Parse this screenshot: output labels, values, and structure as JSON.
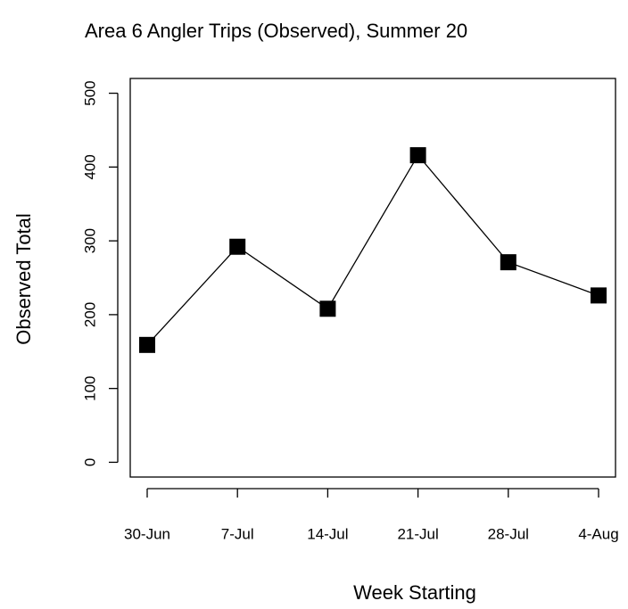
{
  "chart_data": {
    "type": "line",
    "title": "Area 6 Angler Trips (Observed), Summer 20",
    "x_label": "Week Starting",
    "y_label": "Observed Total",
    "categories": [
      "30-Jun",
      "7-Jul",
      "14-Jul",
      "21-Jul",
      "28-Jul",
      "4-Aug"
    ],
    "series": [
      {
        "name": "Observed Total",
        "color": "#000000",
        "values": [
          159,
          292,
          208,
          416,
          271,
          226
        ]
      }
    ],
    "ylim": [
      -20,
      520
    ],
    "yticks": [
      0,
      100,
      200,
      300,
      400,
      500
    ],
    "grid": false
  }
}
